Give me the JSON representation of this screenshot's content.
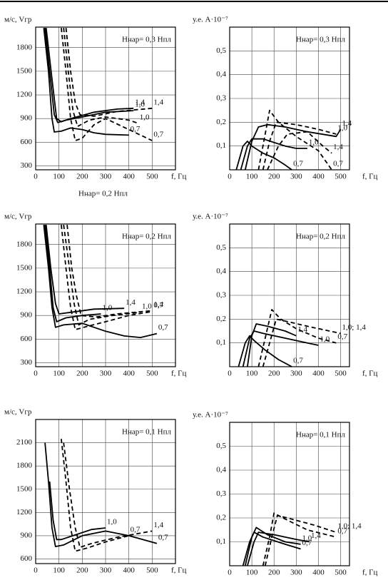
{
  "chart_data": [
    {
      "type": "line",
      "ylabel": "м/с, Vгр",
      "xlabel": "f, Гц",
      "annotation": "Hнар= 0,3 Hпл",
      "note": "Hнар= 0,2 Hпл",
      "xlim": [
        0,
        600
      ],
      "ylim": [
        250,
        2060
      ],
      "xticks": [
        0,
        100,
        200,
        300,
        400,
        500
      ],
      "yticks": [
        300,
        600,
        900,
        1200,
        1500,
        1800
      ],
      "grid": true,
      "series": [
        {
          "name": "0,7",
          "dash": false,
          "color": "#000",
          "x": [
            35,
            55,
            70,
            80,
            110,
            150,
            200,
            250,
            300,
            400
          ],
          "values": [
            2050,
            1500,
            900,
            730,
            740,
            780,
            760,
            720,
            700,
            690
          ]
        },
        {
          "name": "1,0",
          "dash": false,
          "color": "#000",
          "x": [
            40,
            60,
            80,
            95,
            130,
            200,
            300,
            420
          ],
          "values": [
            2050,
            1500,
            950,
            850,
            880,
            920,
            980,
            1000
          ]
        },
        {
          "name": "1,4",
          "dash": false,
          "color": "#000",
          "x": [
            45,
            70,
            90,
            110,
            150,
            250,
            350,
            420
          ],
          "values": [
            2050,
            1400,
            900,
            860,
            900,
            980,
            1020,
            1030
          ]
        },
        {
          "name": "0,7",
          "dash": true,
          "color": "#000",
          "x": [
            110,
            130,
            150,
            170,
            200,
            250,
            300,
            400,
            500
          ],
          "values": [
            2050,
            1500,
            900,
            620,
            650,
            820,
            900,
            760,
            620
          ]
        },
        {
          "name": "1,0",
          "dash": true,
          "color": "#000",
          "x": [
            120,
            140,
            160,
            180,
            230,
            300,
            400,
            440
          ],
          "values": [
            2050,
            1500,
            1000,
            800,
            880,
            920,
            880,
            840
          ]
        },
        {
          "name": "1,4",
          "dash": true,
          "color": "#000",
          "x": [
            130,
            150,
            170,
            190,
            250,
            350,
            500
          ],
          "values": [
            2050,
            1500,
            1100,
            950,
            930,
            990,
            1030
          ]
        }
      ]
    },
    {
      "type": "line",
      "ylabel": "у.е. A·10⁻⁷",
      "xlabel": "f, Гц",
      "annotation": "Hнар= 0,3 Hпл",
      "xlim": [
        0,
        540
      ],
      "ylim": [
        0,
        0.6
      ],
      "xticks": [
        0,
        100,
        200,
        300,
        400,
        500
      ],
      "yticks": [
        {
          "value": 0.1,
          "label": "0,1"
        },
        {
          "value": 0.2,
          "label": "0,2"
        },
        {
          "value": 0.3,
          "label": "0,3"
        },
        {
          "value": 0.4,
          "label": "0,4"
        },
        {
          "value": 0.5,
          "label": "0,5"
        }
      ],
      "grid": true,
      "series": [
        {
          "name": "0,7",
          "dash": false,
          "color": "#000",
          "x": [
            30,
            60,
            80,
            100,
            150,
            200,
            250,
            280
          ],
          "values": [
            0,
            0.1,
            0.12,
            0.1,
            0.07,
            0.05,
            0.02,
            0
          ]
        },
        {
          "name": "1,0",
          "dash": false,
          "color": "#000",
          "x": [
            50,
            80,
            100,
            150,
            250,
            300,
            350
          ],
          "values": [
            0,
            0.1,
            0.13,
            0.13,
            0.1,
            0.09,
            0.09
          ]
        },
        {
          "name": "1,4",
          "dash": false,
          "color": "#000",
          "x": [
            70,
            100,
            130,
            170,
            250,
            350,
            480,
            500
          ],
          "values": [
            0,
            0.12,
            0.18,
            0.19,
            0.18,
            0.16,
            0.14,
            0.17
          ]
        },
        {
          "name": "0,7",
          "dash": true,
          "color": "#000",
          "x": [
            130,
            160,
            180,
            220,
            300,
            400,
            460
          ],
          "values": [
            0,
            0.15,
            0.25,
            0.2,
            0.14,
            0.08,
            0
          ]
        },
        {
          "name": "1,0",
          "dash": true,
          "color": "#000",
          "x": [
            150,
            180,
            210,
            300,
            400,
            480
          ],
          "values": [
            0,
            0.12,
            0.2,
            0.19,
            0.17,
            0.15
          ]
        },
        {
          "name": "1,4",
          "dash": true,
          "color": "#000",
          "x": [
            170,
            220,
            260,
            350,
            420,
            460
          ],
          "values": [
            0,
            0.1,
            0.15,
            0.16,
            0.1,
            0.07
          ]
        }
      ]
    },
    {
      "type": "line",
      "ylabel": "м/с, Vгр",
      "xlabel": "f, Гц",
      "annotation": "Hнар= 0,2 Hпл",
      "xlim": [
        0,
        600
      ],
      "ylim": [
        250,
        2060
      ],
      "xticks": [
        0,
        100,
        200,
        300,
        400,
        500
      ],
      "yticks": [
        300,
        600,
        900,
        1200,
        1500,
        1800
      ],
      "grid": true,
      "series": [
        {
          "name": "0,7",
          "dash": false,
          "color": "#000",
          "x": [
            35,
            55,
            70,
            85,
            120,
            200,
            300,
            380,
            450,
            520
          ],
          "values": [
            2050,
            1500,
            1000,
            750,
            780,
            800,
            700,
            640,
            620,
            670
          ]
        },
        {
          "name": "1,0",
          "dash": false,
          "color": "#000",
          "x": [
            40,
            60,
            75,
            90,
            130,
            200,
            280
          ],
          "values": [
            2050,
            1500,
            1000,
            820,
            870,
            900,
            920
          ]
        },
        {
          "name": "1,4",
          "dash": false,
          "color": "#000",
          "x": [
            45,
            65,
            85,
            100,
            150,
            250,
            380
          ],
          "values": [
            2050,
            1500,
            1050,
            920,
            940,
            980,
            990
          ]
        },
        {
          "name": "0,7",
          "dash": true,
          "color": "#000",
          "x": [
            110,
            130,
            150,
            170,
            220,
            300,
            400,
            500
          ],
          "values": [
            2050,
            1500,
            1000,
            720,
            760,
            820,
            900,
            950
          ]
        },
        {
          "name": "1,0",
          "dash": true,
          "color": "#000",
          "x": [
            120,
            145,
            165,
            185,
            230,
            330,
            450
          ],
          "values": [
            2050,
            1500,
            1050,
            780,
            850,
            900,
            940
          ]
        },
        {
          "name": "1,4",
          "dash": true,
          "color": "#000",
          "x": [
            135,
            155,
            175,
            195,
            260,
            350,
            500
          ],
          "values": [
            2050,
            1500,
            1150,
            900,
            880,
            920,
            960
          ]
        }
      ]
    },
    {
      "type": "line",
      "ylabel": "у.е. A·10⁻⁷",
      "xlabel": "f, Гц",
      "annotation": "Hнар= 0,2 Hпл",
      "xlim": [
        0,
        540
      ],
      "ylim": [
        0,
        0.6
      ],
      "xticks": [
        0,
        100,
        200,
        300,
        400,
        500
      ],
      "yticks": [
        {
          "value": 0.1,
          "label": "0,1"
        },
        {
          "value": 0.2,
          "label": "0,2"
        },
        {
          "value": 0.3,
          "label": "0,3"
        },
        {
          "value": 0.4,
          "label": "0,4"
        },
        {
          "value": 0.5,
          "label": "0,5"
        }
      ],
      "grid": true,
      "series": [
        {
          "name": "0,7",
          "dash": false,
          "color": "#000",
          "x": [
            40,
            70,
            90,
            110,
            160,
            220,
            280
          ],
          "values": [
            0,
            0.1,
            0.13,
            0.11,
            0.07,
            0.03,
            0
          ]
        },
        {
          "name": "1,0",
          "dash": false,
          "color": "#000",
          "x": [
            60,
            90,
            110,
            150,
            250,
            350,
            400
          ],
          "values": [
            0,
            0.12,
            0.15,
            0.14,
            0.12,
            0.1,
            0.09
          ]
        },
        {
          "name": "1,4",
          "dash": false,
          "color": "#000",
          "x": [
            80,
            100,
            120,
            170,
            250,
            300
          ],
          "values": [
            0,
            0.13,
            0.18,
            0.17,
            0.15,
            0.13
          ]
        },
        {
          "name": "0,7",
          "dash": true,
          "color": "#000",
          "x": [
            130,
            160,
            190,
            230,
            300,
            400,
            480
          ],
          "values": [
            0,
            0.12,
            0.24,
            0.2,
            0.16,
            0.12,
            0.1
          ]
        },
        {
          "name": "1,0; 1,4",
          "dash": true,
          "color": "#000",
          "x": [
            150,
            180,
            210,
            260,
            350,
            450,
            500
          ],
          "values": [
            0,
            0.1,
            0.2,
            0.19,
            0.17,
            0.15,
            0.14
          ]
        }
      ]
    },
    {
      "type": "line",
      "ylabel": "м/с, Vгр",
      "xlabel": "f, Гц",
      "annotation": "Hнар= 0,1 Hпл",
      "xlim": [
        0,
        600
      ],
      "ylim": [
        540,
        2400
      ],
      "xticks": [
        0,
        100,
        200,
        300,
        400,
        500
      ],
      "yticks": [
        600,
        900,
        1200,
        1500,
        1800,
        2100
      ],
      "grid": true,
      "series": [
        {
          "name": "0,7",
          "dash": false,
          "color": "#000",
          "x": [
            40,
            55,
            70,
            85,
            120,
            200,
            300,
            400,
            520
          ],
          "values": [
            2100,
            1600,
            1000,
            760,
            780,
            900,
            960,
            900,
            800
          ]
        },
        {
          "name": "1,0",
          "dash": false,
          "color": "#000",
          "x": [
            60,
            75,
            90,
            110,
            160,
            240,
            300
          ],
          "values": [
            1600,
            1100,
            850,
            850,
            900,
            980,
            1000
          ]
        },
        {
          "name": "0,7",
          "dash": true,
          "color": "#000",
          "x": [
            110,
            130,
            150,
            170,
            220,
            300,
            400
          ],
          "values": [
            2150,
            1600,
            1000,
            700,
            740,
            820,
            900
          ]
        },
        {
          "name": "1,4",
          "dash": true,
          "color": "#000",
          "x": [
            120,
            145,
            170,
            190,
            240,
            350,
            500
          ],
          "values": [
            2100,
            1500,
            1000,
            750,
            800,
            880,
            960
          ]
        }
      ]
    },
    {
      "type": "line",
      "ylabel": "у.е. A·10⁻⁷",
      "xlabel": "f, Гц",
      "annotation": "Hнар= 0,1 Hпл",
      "xlim": [
        0,
        540
      ],
      "ylim": [
        0,
        0.6
      ],
      "xticks": [
        0,
        100,
        200,
        300,
        400,
        500
      ],
      "yticks": [
        {
          "value": 0.1,
          "label": "0,1"
        },
        {
          "value": 0.2,
          "label": "0,2"
        },
        {
          "value": 0.3,
          "label": "0,3"
        },
        {
          "value": 0.4,
          "label": "0,4"
        },
        {
          "value": 0.5,
          "label": "0,5"
        }
      ],
      "grid": true,
      "series": [
        {
          "name": "0,7",
          "dash": false,
          "color": "#000",
          "x": [
            60,
            90,
            110,
            150,
            250,
            320
          ],
          "values": [
            0,
            0.1,
            0.14,
            0.12,
            0.09,
            0.07
          ]
        },
        {
          "name": "1,0",
          "dash": false,
          "color": "#000",
          "x": [
            70,
            100,
            120,
            170,
            250,
            320
          ],
          "values": [
            0,
            0.12,
            0.16,
            0.13,
            0.1,
            0.09
          ]
        },
        {
          "name": "1,4",
          "dash": false,
          "color": "#000",
          "x": [
            80,
            110,
            130,
            200,
            300,
            360
          ],
          "values": [
            0,
            0.1,
            0.14,
            0.13,
            0.11,
            0.1
          ]
        },
        {
          "name": "0,7",
          "dash": true,
          "color": "#000",
          "x": [
            150,
            180,
            200,
            240,
            350,
            480
          ],
          "values": [
            0,
            0.12,
            0.22,
            0.2,
            0.15,
            0.12
          ]
        },
        {
          "name": "1,0; 1,4",
          "dash": true,
          "color": "#000",
          "x": [
            160,
            190,
            215,
            260,
            380,
            480
          ],
          "values": [
            0,
            0.12,
            0.21,
            0.2,
            0.17,
            0.14
          ]
        }
      ]
    }
  ]
}
